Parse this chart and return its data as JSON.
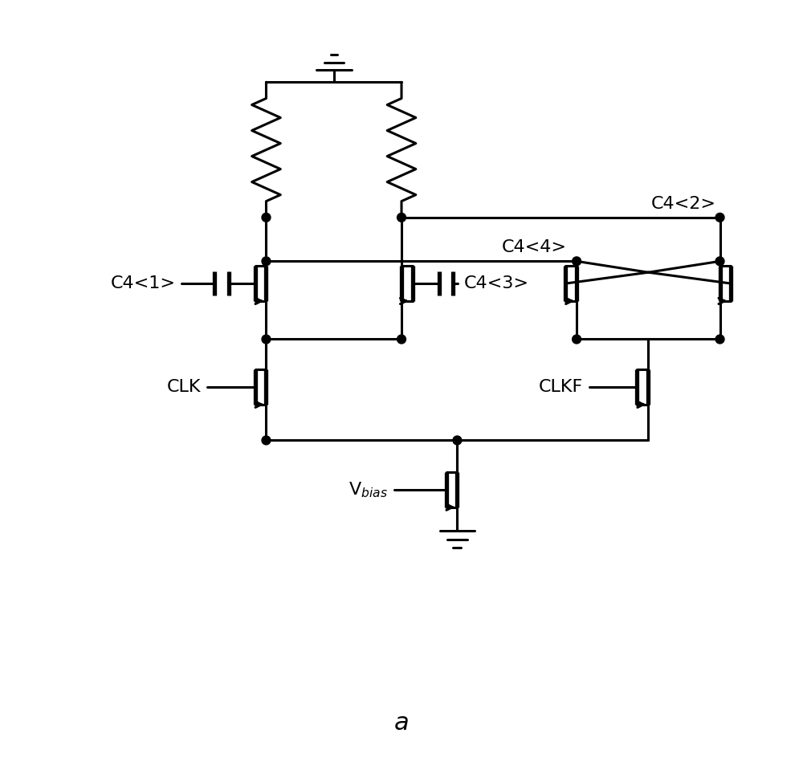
{
  "background_color": "#ffffff",
  "line_color": "#000000",
  "lw": 2.2,
  "lw_thick": 3.8,
  "label_fontsize": 16,
  "title_fontsize": 22,
  "title": "a",
  "dot_r": 0.055,
  "labels": {
    "C4_1": "C4<1>",
    "C4_2": "C4<2>",
    "C4_3": "C4<3>",
    "C4_4": "C4<4>",
    "CLK": "CLK",
    "CLKF": "CLKF",
    "Vbias": "V$_{bias}$"
  }
}
